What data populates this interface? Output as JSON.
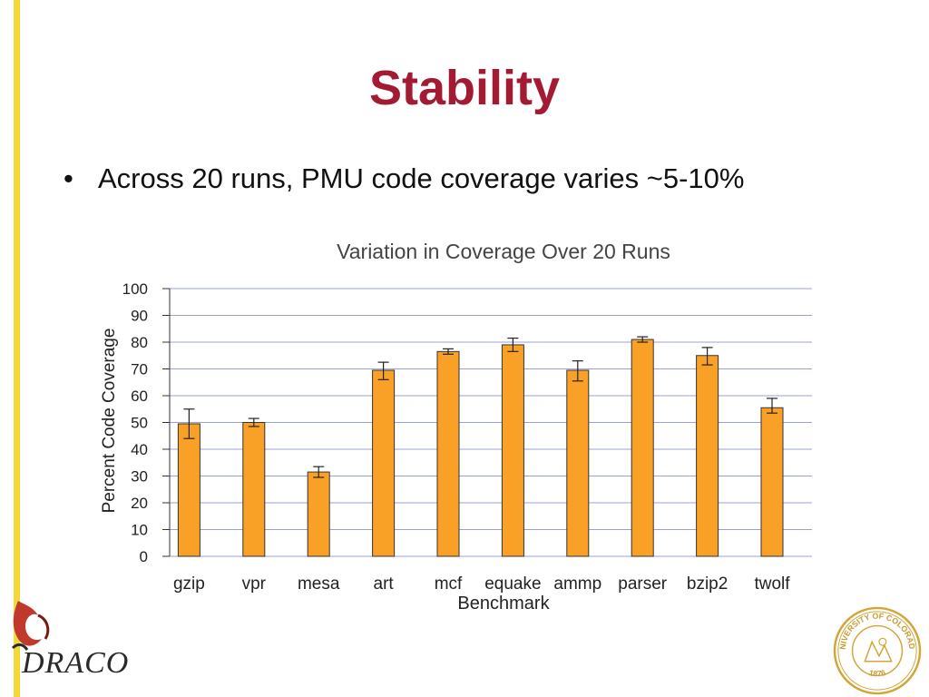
{
  "slide": {
    "title": "Stability",
    "bullet_marker": "•",
    "bullet_text": "Across 20 runs, PMU code coverage varies ~5-10%"
  },
  "logos": {
    "left_logo_text": "DRACO",
    "seal_text": "UNIVERSITY OF COLORADO",
    "seal_year": "1876"
  },
  "colors": {
    "title": "#a31a33",
    "bar_fill": "#f9a126",
    "bar_stroke": "#333333",
    "grid": "#9aa0d8",
    "side_bar": "#f3d83a",
    "logo_red": "#c0392b",
    "seal_gold": "#d4a437"
  },
  "chart_data": {
    "type": "bar",
    "title": "Variation in Coverage Over 20 Runs",
    "xlabel": "Benchmark",
    "ylabel": "Percent Code Coverage",
    "ylim": [
      0,
      100
    ],
    "yticks": [
      0,
      10,
      20,
      30,
      40,
      50,
      60,
      70,
      80,
      90,
      100
    ],
    "grid": true,
    "categories": [
      "gzip",
      "vpr",
      "mesa",
      "art",
      "mcf",
      "equake",
      "ammp",
      "parser",
      "bzip2",
      "twolf"
    ],
    "values": [
      49.5,
      50,
      31.5,
      69.5,
      76.5,
      79,
      69.5,
      81,
      75,
      55.5
    ],
    "error_low": [
      44,
      48.5,
      29.5,
      66,
      75.5,
      76.5,
      65.5,
      80,
      71.5,
      53.5
    ],
    "error_high": [
      55,
      51.5,
      33.5,
      72.5,
      77.5,
      81.5,
      73,
      82,
      78,
      59
    ]
  }
}
